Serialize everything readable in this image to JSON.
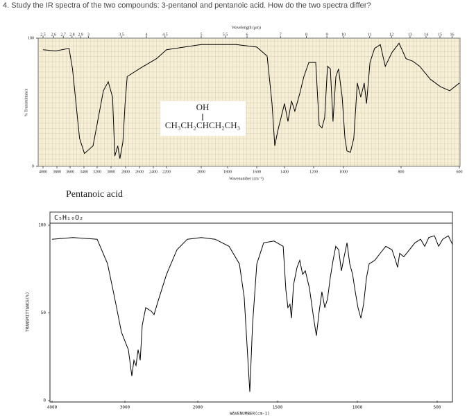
{
  "question": "4. Study the IR spectra of the two compounds: 3-pentanol and pentanoic acid. How do the two spectra differ?",
  "chart_data": [
    {
      "type": "line",
      "x_label": "Wavenumber (cm⁻¹)",
      "x2_label": "Wavelength (μm)",
      "y_label": "% Transmittance",
      "annotations": [
        "OH",
        "CH₃CH₂CHCH₂CH₃"
      ],
      "xlim": [
        4000,
        600
      ],
      "ylim": [
        0,
        100
      ],
      "xticks": [
        4000,
        3800,
        3600,
        3400,
        3200,
        3000,
        2800,
        2600,
        2400,
        2200,
        2000,
        1800,
        1600,
        1400,
        1200,
        1000,
        800,
        600
      ],
      "x2ticks": [
        2.5,
        2.6,
        2.7,
        2.8,
        2.9,
        3,
        3.5,
        4,
        4.5,
        5,
        5.5,
        6,
        7,
        8,
        9,
        10,
        11,
        12,
        13,
        14,
        15,
        16
      ],
      "yticks": [
        0,
        100
      ],
      "grid": true,
      "color": "#000000",
      "x": [
        4000,
        3818,
        3616,
        3565,
        3464,
        3393,
        3262,
        3110,
        3040,
        2979,
        2948,
        2908,
        2878,
        2837,
        2807,
        2777,
        2605,
        2352,
        2200,
        2000,
        1743,
        1600,
        1525,
        1490,
        1470,
        1450,
        1425,
        1400,
        1376,
        1352,
        1329,
        1295,
        1267,
        1233,
        1186,
        1163,
        1144,
        1126,
        1107,
        1088,
        1070,
        1051,
        1033,
        1009,
        995,
        988,
        976,
        964,
        952,
        940,
        928,
        920,
        908,
        892,
        872,
        855,
        831,
        807,
        783,
        760,
        736,
        700,
        664,
        633,
        600
      ],
      "values": [
        91,
        90,
        92,
        76,
        22,
        10,
        16,
        59,
        66,
        54,
        8,
        16,
        6,
        19,
        49,
        70,
        76,
        84,
        91,
        95,
        95,
        93,
        86,
        49,
        16,
        27,
        38,
        49,
        35,
        51,
        43,
        57,
        70,
        81,
        81,
        32,
        30,
        38,
        78,
        76,
        35,
        70,
        76,
        54,
        22,
        12,
        11,
        22,
        65,
        54,
        65,
        49,
        81,
        92,
        95,
        78,
        89,
        96,
        84,
        82,
        78,
        68,
        62,
        59,
        65
      ]
    },
    {
      "type": "line",
      "title": "Pentanoic acid",
      "formula": "C₅H₁₀O₂",
      "x_label": "WAVENUMBER(cm-1)",
      "y_label": "TRANSMITTANCE(%)",
      "xlim": [
        4000,
        400
      ],
      "ylim": [
        0,
        100
      ],
      "xticks": [
        4000,
        3000,
        2000,
        1500,
        1000,
        500
      ],
      "yticks": [
        0,
        50,
        100
      ],
      "color": "#000000",
      "x": [
        4000,
        3714,
        3381,
        3238,
        3143,
        3048,
        2952,
        2905,
        2876,
        2848,
        2819,
        2790,
        2762,
        2714,
        2638,
        2600,
        2543,
        2429,
        2286,
        2143,
        1978,
        1891,
        1804,
        1739,
        1709,
        1691,
        1674,
        1657,
        1630,
        1587,
        1522,
        1465,
        1448,
        1435,
        1422,
        1413,
        1400,
        1378,
        1361,
        1343,
        1326,
        1300,
        1274,
        1257,
        1239,
        1222,
        1204,
        1187,
        1170,
        1152,
        1135,
        1117,
        1100,
        1083,
        1065,
        1048,
        1030,
        1013,
        996,
        978,
        961,
        943,
        926,
        891,
        857,
        822,
        783,
        761,
        748,
        735,
        709,
        674,
        639,
        604,
        578,
        552,
        517,
        491,
        465,
        430,
        404
      ],
      "values": [
        92,
        93,
        92,
        78,
        59,
        39,
        29,
        14,
        23,
        20,
        29,
        23,
        43,
        53,
        51,
        49,
        57,
        72,
        86,
        92,
        93,
        92,
        88,
        78,
        59,
        31,
        5,
        43,
        78,
        90,
        91,
        88,
        63,
        53,
        55,
        47,
        66,
        76,
        80,
        72,
        74,
        64,
        47,
        37,
        51,
        62,
        53,
        58,
        70,
        80,
        88,
        86,
        74,
        82,
        90,
        78,
        72,
        62,
        53,
        47,
        55,
        70,
        78,
        80,
        84,
        88,
        86,
        80,
        76,
        84,
        82,
        86,
        90,
        92,
        88,
        93,
        94,
        88,
        92,
        94,
        89
      ]
    }
  ]
}
